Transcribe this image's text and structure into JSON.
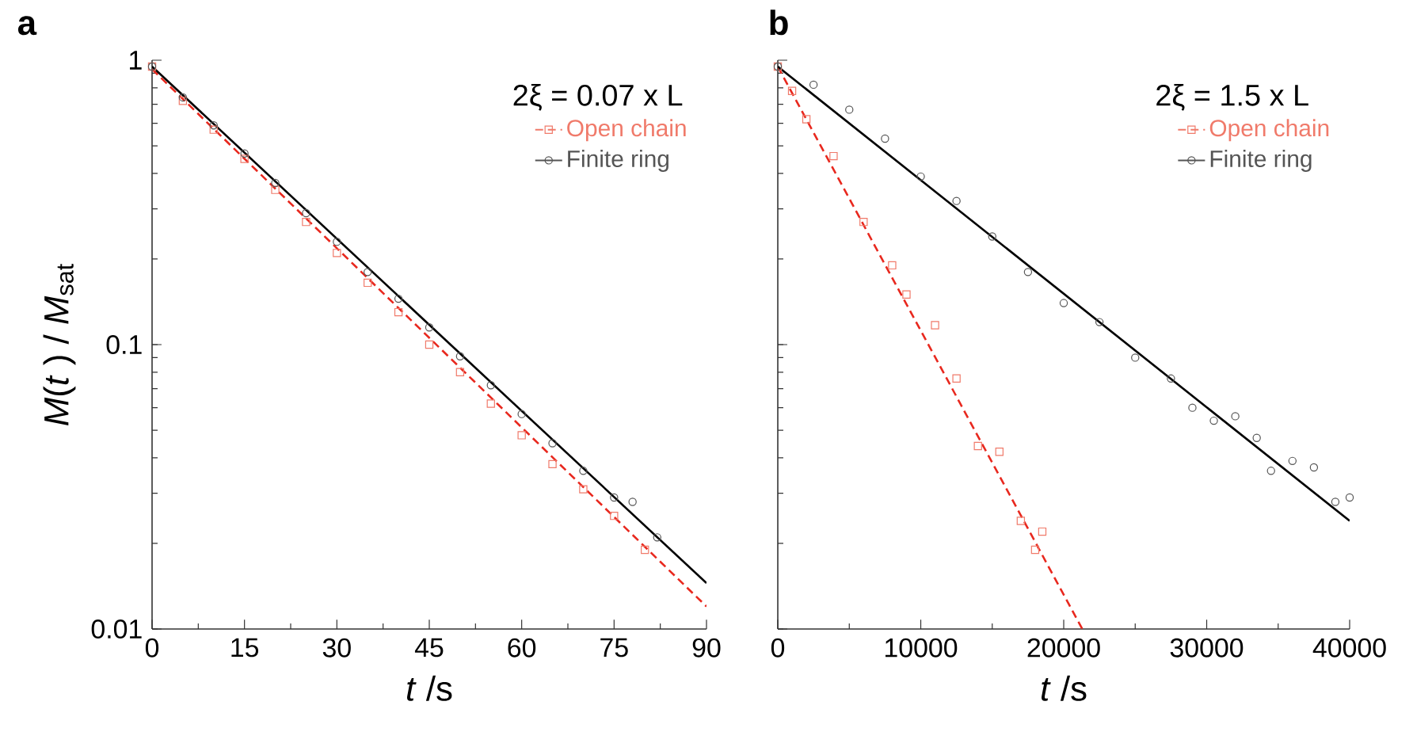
{
  "chart_data": [
    {
      "type": "scatter",
      "title": "**a**",
      "xlabel": "*t* /s",
      "ylabel": "*M*(*t* ) / *M*$_{sat}$",
      "legend_title": "2ξ = 0.07 x L",
      "log": "y",
      "legend": "top right",
      "xlim": [
        0,
        90
      ],
      "xticks": [
        0,
        15,
        30,
        45,
        60,
        75,
        90
      ],
      "ylim": [
        0.01,
        1
      ],
      "yticks": [
        0.01,
        0.1,
        1
      ],
      "series": [
        {
          "name": "Open chain",
          "marker": "square",
          "line_style": "dashed",
          "color": "#f07a6a",
          "x": [
            0,
            5,
            10,
            15,
            20,
            25,
            30,
            35,
            40,
            45,
            50,
            55,
            60,
            65,
            70,
            75,
            80
          ],
          "values": [
            0.95,
            0.72,
            0.57,
            0.45,
            0.35,
            0.27,
            0.21,
            0.165,
            0.13,
            0.1,
            0.08,
            0.062,
            0.048,
            0.038,
            0.031,
            0.025,
            0.019
          ]
        },
        {
          "name": "Finite ring",
          "marker": "circle",
          "line_style": "solid",
          "color": "#555555",
          "x": [
            0,
            5,
            10,
            15,
            20,
            25,
            30,
            35,
            40,
            45,
            50,
            55,
            60,
            65,
            70,
            75,
            78,
            82
          ],
          "values": [
            0.95,
            0.74,
            0.59,
            0.47,
            0.37,
            0.29,
            0.23,
            0.18,
            0.145,
            0.115,
            0.091,
            0.072,
            0.057,
            0.045,
            0.036,
            0.029,
            0.028,
            0.021
          ]
        },
        {
          "type": "line",
          "line_style": "dashed",
          "color": "#e8281e",
          "x": [
            0,
            90
          ],
          "values": [
            0.93,
            0.012
          ]
        },
        {
          "type": "line",
          "line_style": "solid",
          "color": "#000000",
          "x": [
            0,
            90
          ],
          "values": [
            0.95,
            0.0145
          ]
        }
      ]
    },
    {
      "type": "scatter",
      "title": "**b**",
      "xlabel": "*t* /s",
      "legend_title": "2ξ = 1.5 x L",
      "log": "y",
      "legend": "top right",
      "tick_labels": "x",
      "xlim": [
        0,
        40000
      ],
      "xticks": [
        0,
        10000,
        20000,
        30000,
        40000
      ],
      "ylim": [
        0.01,
        1
      ],
      "yticks": [
        0.01,
        0.1,
        1
      ],
      "series": [
        {
          "name": "Open chain",
          "marker": "square",
          "line_style": "dashed",
          "color": "#f07a6a",
          "x": [
            0,
            1000,
            2000,
            3900,
            6000,
            8000,
            9000,
            11000,
            12500,
            14000,
            15500,
            17000,
            18000,
            18500
          ],
          "values": [
            0.95,
            0.78,
            0.62,
            0.46,
            0.27,
            0.19,
            0.15,
            0.117,
            0.076,
            0.044,
            0.042,
            0.024,
            0.019,
            0.022
          ]
        },
        {
          "name": "Finite ring",
          "marker": "circle",
          "line_style": "solid",
          "color": "#555555",
          "x": [
            0,
            2500,
            5000,
            7500,
            10000,
            12500,
            15000,
            17500,
            20000,
            22500,
            25000,
            27500,
            29000,
            30500,
            32000,
            33500,
            34500,
            36000,
            37500,
            39000,
            40000
          ],
          "values": [
            0.95,
            0.82,
            0.67,
            0.53,
            0.39,
            0.32,
            0.24,
            0.18,
            0.14,
            0.12,
            0.09,
            0.076,
            0.06,
            0.054,
            0.056,
            0.047,
            0.036,
            0.039,
            0.037,
            0.028,
            0.029
          ]
        },
        {
          "type": "line",
          "line_style": "dashed",
          "color": "#e8281e",
          "x": [
            0,
            21300
          ],
          "values": [
            0.95,
            0.01
          ]
        },
        {
          "type": "line",
          "line_style": "solid",
          "color": "#000000",
          "x": [
            0,
            40000
          ],
          "values": [
            0.95,
            0.024
          ]
        }
      ]
    }
  ]
}
